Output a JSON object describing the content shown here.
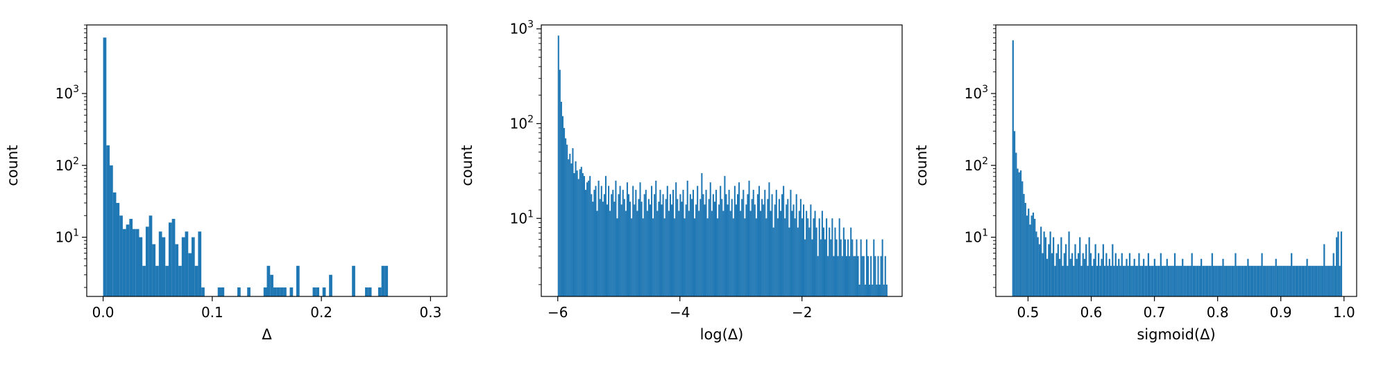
{
  "chart_data": [
    {
      "type": "bar",
      "subtype": "histogram",
      "ylabel": "count",
      "xlabel": "Δ",
      "ylog": true,
      "xlim": [
        -0.015,
        0.315
      ],
      "ylim": [
        1.5,
        9000
      ],
      "xticks": [
        0.0,
        0.1,
        0.2,
        0.3
      ],
      "xtick_labels": [
        "0.0",
        "0.1",
        "0.2",
        "0.3"
      ],
      "yticks": [
        10,
        100,
        1000
      ],
      "ytick_labels": [
        "10^1",
        "10^2",
        "10^3"
      ],
      "bar_color": "#1f77b4",
      "bin_edges_range": [
        0.0,
        0.3
      ],
      "counts": [
        6000,
        190,
        100,
        42,
        30,
        20,
        13,
        15,
        18,
        13,
        13,
        10,
        4,
        14,
        20,
        8,
        4,
        12,
        10,
        4,
        16,
        18,
        8,
        4,
        10,
        12,
        6,
        10,
        4,
        12,
        2,
        1,
        1,
        1,
        1,
        2,
        2,
        1,
        1,
        1,
        1,
        2,
        1,
        1,
        2,
        1,
        1,
        1,
        1,
        2,
        4,
        3,
        2,
        2,
        2,
        2,
        1,
        2,
        1,
        4,
        1,
        1,
        1,
        1,
        2,
        2,
        1,
        2,
        1,
        3,
        1,
        1,
        1,
        1,
        1,
        1,
        4,
        1,
        1,
        1,
        2,
        2,
        1,
        1,
        2,
        4,
        4,
        1,
        1,
        1,
        1,
        1,
        1,
        1,
        1,
        1,
        1,
        1,
        1,
        1
      ]
    },
    {
      "type": "bar",
      "subtype": "histogram",
      "ylabel": "count",
      "xlabel": "log(Δ)",
      "ylog": true,
      "xlim": [
        -6.27,
        -0.36
      ],
      "ylim": [
        1.5,
        1100
      ],
      "xticks": [
        -6,
        -4,
        -2
      ],
      "xtick_labels": [
        "−6",
        "−4",
        "−2"
      ],
      "yticks": [
        10,
        100,
        1000
      ],
      "ytick_labels": [
        "10^1",
        "10^2",
        "10^3"
      ],
      "bar_color": "#1f77b4",
      "bin_edges_range": [
        -6.0,
        -0.6
      ],
      "counts": [
        850,
        370,
        170,
        120,
        90,
        70,
        60,
        42,
        48,
        38,
        55,
        30,
        40,
        32,
        26,
        33,
        35,
        30,
        28,
        20,
        24,
        25,
        28,
        18,
        15,
        20,
        22,
        12,
        25,
        16,
        22,
        15,
        18,
        28,
        14,
        22,
        12,
        18,
        20,
        15,
        25,
        10,
        18,
        22,
        14,
        20,
        16,
        12,
        24,
        18,
        15,
        10,
        22,
        14,
        20,
        12,
        16,
        24,
        15,
        10,
        18,
        20,
        12,
        16,
        14,
        22,
        10,
        18,
        25,
        12,
        15,
        20,
        14,
        18,
        10,
        16,
        22,
        12,
        18,
        14,
        20,
        10,
        24,
        16,
        12,
        18,
        15,
        20,
        10,
        14,
        25,
        12,
        18,
        16,
        20,
        10,
        14,
        22,
        12,
        16,
        30,
        18,
        14,
        20,
        10,
        16,
        24,
        12,
        18,
        15,
        20,
        10,
        14,
        22,
        16,
        12,
        28,
        18,
        14,
        20,
        12,
        16,
        10,
        22,
        14,
        18,
        24,
        12,
        16,
        20,
        10,
        14,
        18,
        25,
        12,
        16,
        20,
        14,
        10,
        18,
        22,
        12,
        16,
        14,
        20,
        10,
        16,
        24,
        12,
        18,
        8,
        14,
        20,
        10,
        16,
        12,
        18,
        22,
        10,
        14,
        16,
        8,
        20,
        12,
        14,
        10,
        18,
        8,
        12,
        16,
        10,
        14,
        6,
        12,
        10,
        8,
        14,
        6,
        10,
        12,
        8,
        4,
        10,
        6,
        12,
        8,
        6,
        10,
        4,
        8,
        6,
        10,
        4,
        8,
        6,
        4,
        10,
        6,
        4,
        8,
        6,
        4,
        6,
        4,
        8,
        6,
        4,
        4,
        6,
        4,
        2,
        6,
        4,
        4,
        2,
        6,
        4,
        2,
        4,
        2,
        6,
        4,
        2,
        4,
        2,
        4,
        6,
        2,
        4,
        2
      ]
    },
    {
      "type": "bar",
      "subtype": "histogram",
      "ylabel": "count",
      "xlabel": "sigmoid(Δ)",
      "ylog": true,
      "xlim": [
        0.449,
        1.02
      ],
      "ylim": [
        1.5,
        9000
      ],
      "xticks": [
        0.5,
        0.6,
        0.7,
        0.8,
        0.9,
        1.0
      ],
      "xtick_labels": [
        "0.5",
        "0.6",
        "0.7",
        "0.8",
        "0.9",
        "1.0"
      ],
      "yticks": [
        10,
        100,
        1000
      ],
      "ytick_labels": [
        "10^1",
        "10^2",
        "10^3"
      ],
      "bar_color": "#1f77b4",
      "bin_edges_range": [
        0.475,
        0.997
      ],
      "counts": [
        5500,
        300,
        150,
        90,
        80,
        85,
        60,
        40,
        30,
        20,
        25,
        15,
        20,
        22,
        18,
        12,
        10,
        8,
        14,
        6,
        12,
        10,
        5,
        8,
        12,
        6,
        10,
        4,
        6,
        8,
        5,
        10,
        4,
        6,
        8,
        4,
        12,
        5,
        6,
        4,
        8,
        5,
        6,
        10,
        4,
        6,
        5,
        8,
        4,
        10,
        6,
        4,
        5,
        8,
        4,
        6,
        4,
        5,
        8,
        4,
        6,
        4,
        5,
        4,
        8,
        4,
        6,
        4,
        5,
        4,
        6,
        4,
        4,
        5,
        4,
        6,
        4,
        4,
        5,
        4,
        4,
        6,
        4,
        4,
        5,
        4,
        4,
        6,
        4,
        4,
        4,
        5,
        4,
        4,
        4,
        6,
        4,
        4,
        4,
        5,
        4,
        4,
        4,
        4,
        6,
        4,
        4,
        4,
        4,
        5,
        4,
        4,
        4,
        4,
        4,
        6,
        4,
        4,
        4,
        4,
        4,
        5,
        4,
        4,
        4,
        4,
        4,
        4,
        6,
        4,
        4,
        4,
        4,
        4,
        4,
        5,
        4,
        4,
        4,
        4,
        4,
        4,
        4,
        6,
        4,
        4,
        4,
        4,
        4,
        4,
        4,
        5,
        4,
        4,
        4,
        4,
        4,
        4,
        4,
        4,
        6,
        4,
        4,
        4,
        4,
        4,
        4,
        4,
        4,
        5,
        4,
        4,
        4,
        4,
        4,
        4,
        4,
        4,
        4,
        6,
        4,
        4,
        4,
        4,
        4,
        4,
        4,
        4,
        4,
        5,
        4,
        4,
        4,
        4,
        4,
        4,
        4,
        4,
        4,
        4,
        8,
        4,
        4,
        4,
        4,
        4,
        6,
        4,
        10,
        12,
        4,
        12
      ]
    }
  ]
}
